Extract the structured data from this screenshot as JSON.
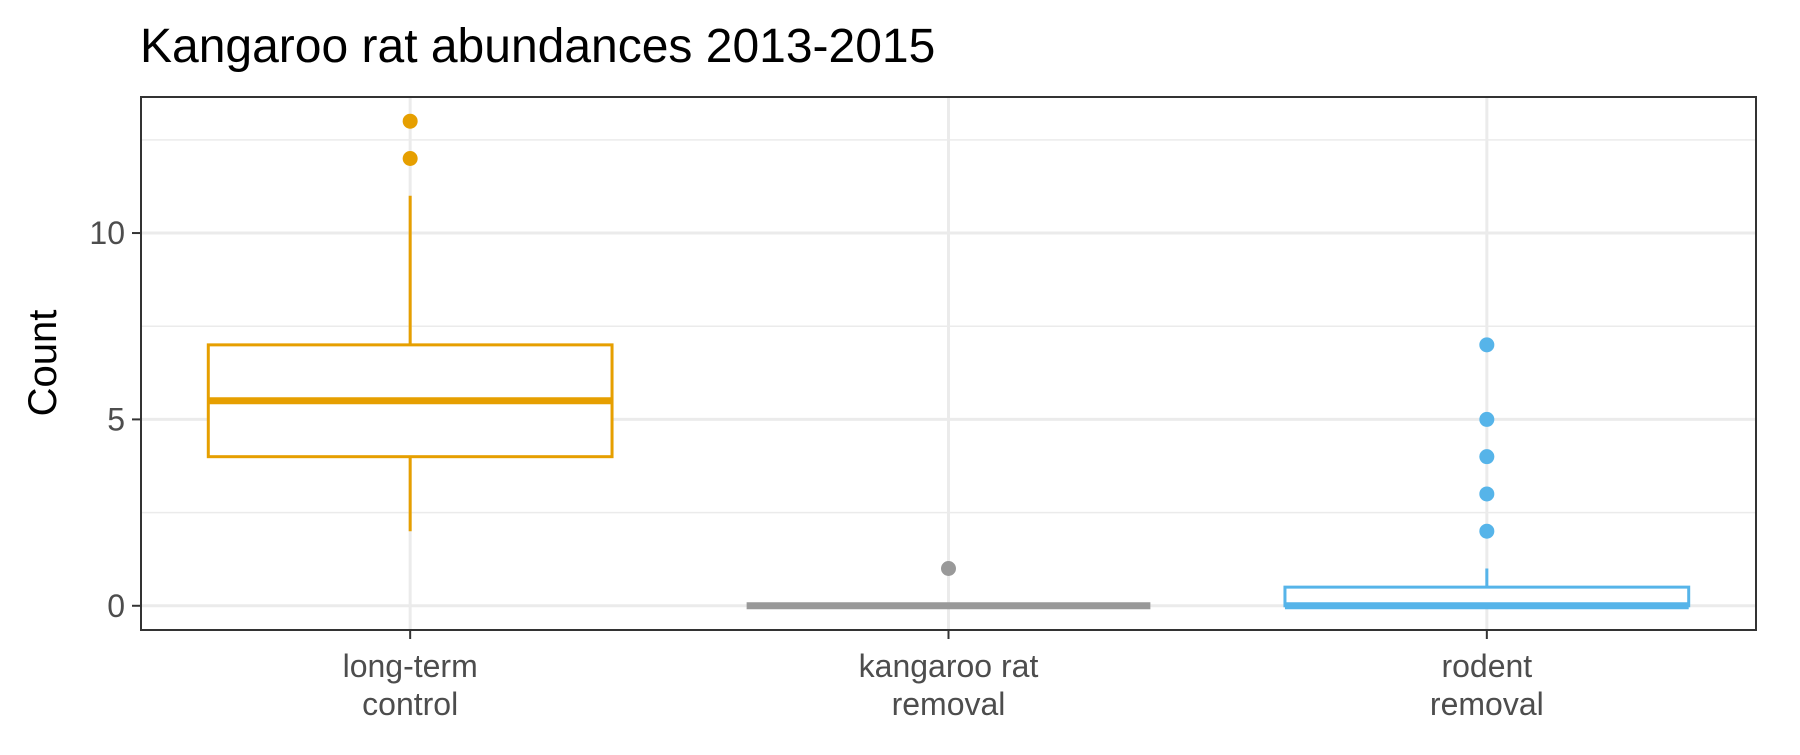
{
  "chart_data": {
    "type": "box",
    "title": "Kangaroo rat abundances 2013-2015",
    "xlabel": "",
    "ylabel": "Count",
    "ylim": [
      -0.65,
      13.65
    ],
    "y_ticks": [
      0,
      5,
      10
    ],
    "y_tick_labels": [
      "0",
      "5",
      "10"
    ],
    "grid": true,
    "theme": "bw",
    "categories": [
      {
        "label_lines": [
          "long-term",
          "control"
        ],
        "color": "#E69F00",
        "min": 2,
        "q1": 4,
        "median": 5.5,
        "q3": 7,
        "max": 11,
        "outliers": [
          12,
          13
        ]
      },
      {
        "label_lines": [
          "kangaroo rat",
          "removal"
        ],
        "color": "#999999",
        "min": 0,
        "q1": 0,
        "median": 0,
        "q3": 0,
        "max": 0,
        "outliers": [
          1
        ]
      },
      {
        "label_lines": [
          "rodent",
          "removal"
        ],
        "color": "#56B4E9",
        "min": 0,
        "q1": 0,
        "median": 0,
        "q3": 0.5,
        "max": 1,
        "outliers": [
          2,
          3,
          4,
          5,
          7
        ]
      }
    ]
  }
}
